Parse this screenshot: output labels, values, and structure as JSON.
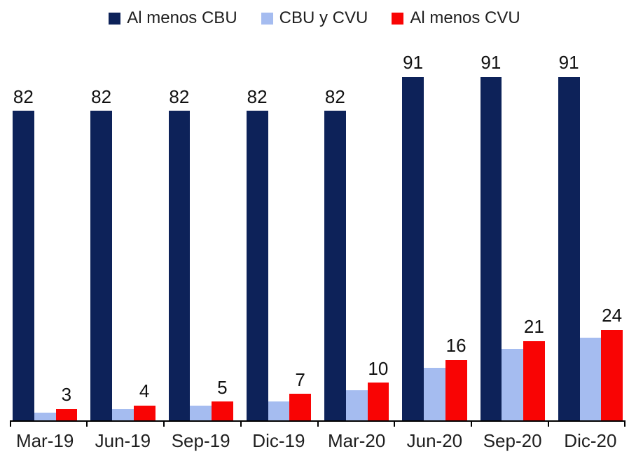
{
  "chart_data": {
    "type": "bar",
    "title": "",
    "categories": [
      "Mar-19",
      "Jun-19",
      "Sep-19",
      "Dic-19",
      "Mar-20",
      "Jun-20",
      "Sep-20",
      "Dic-20"
    ],
    "series": [
      {
        "name": "Al menos CBU",
        "color": "#0d2259",
        "values": [
          82,
          82,
          82,
          82,
          82,
          91,
          91,
          91
        ],
        "data_labels": true
      },
      {
        "name": "CBU y CVU",
        "color": "#a5bcf0",
        "values": [
          2,
          3,
          4,
          5,
          8,
          14,
          19,
          22
        ],
        "data_labels": false
      },
      {
        "name": "Al menos CVU",
        "color": "#f90404",
        "values": [
          3,
          4,
          5,
          7,
          10,
          16,
          21,
          24
        ],
        "data_labels": true
      }
    ],
    "xlabel": "",
    "ylabel": "",
    "ylim": [
      0,
      102.5
    ],
    "grid": false,
    "legend_position": "top",
    "axis_color": "#000000",
    "label_color": "#111111"
  }
}
